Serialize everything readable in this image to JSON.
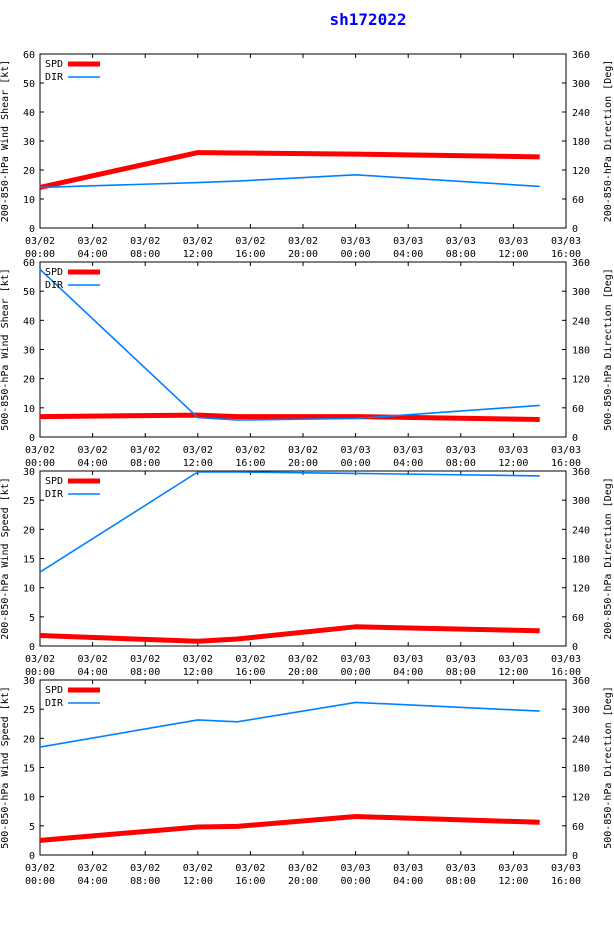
{
  "title": "sh172022",
  "colors": {
    "spd": "#ff0000",
    "dir": "#0080ff",
    "axis": "#000000",
    "title": "#0000ff"
  },
  "x_ticks": [
    [
      "03/02",
      "00:00"
    ],
    [
      "03/02",
      "04:00"
    ],
    [
      "03/02",
      "08:00"
    ],
    [
      "03/02",
      "12:00"
    ],
    [
      "03/02",
      "16:00"
    ],
    [
      "03/02",
      "20:00"
    ],
    [
      "03/03",
      "00:00"
    ],
    [
      "03/03",
      "04:00"
    ],
    [
      "03/03",
      "08:00"
    ],
    [
      "03/03",
      "12:00"
    ],
    [
      "03/03",
      "16:00"
    ]
  ],
  "chart_data": [
    {
      "type": "line",
      "ylabel_left": "200-850-hPa Wind Shear [kt]",
      "ylabel_right": "200-850-hPa Direction [Deg]",
      "ylim_left": [
        0,
        60
      ],
      "yticks_left": [
        0,
        10,
        20,
        30,
        40,
        50,
        60
      ],
      "ylim_right": [
        0,
        360
      ],
      "yticks_right": [
        0,
        60,
        120,
        180,
        240,
        300,
        360
      ],
      "xlim_hours": [
        0,
        40
      ],
      "legend": [
        "SPD",
        "DIR"
      ],
      "series": [
        {
          "name": "SPD",
          "axis": "left",
          "x_hours": [
            0,
            12,
            24,
            38
          ],
          "values": [
            14,
            26,
            25.5,
            24.5
          ]
        },
        {
          "name": "DIR",
          "axis": "right",
          "x_hours": [
            0,
            12,
            15,
            24,
            38
          ],
          "values": [
            84,
            94,
            97,
            110,
            86
          ]
        }
      ]
    },
    {
      "type": "line",
      "ylabel_left": "500-850-hPa Wind Shear [kt]",
      "ylabel_right": "500-850-hPa Direction [Deg]",
      "ylim_left": [
        0,
        60
      ],
      "yticks_left": [
        0,
        10,
        20,
        30,
        40,
        50,
        60
      ],
      "ylim_right": [
        0,
        360
      ],
      "yticks_right": [
        0,
        60,
        120,
        180,
        240,
        300,
        360
      ],
      "xlim_hours": [
        0,
        40
      ],
      "legend": [
        "SPD",
        "DIR"
      ],
      "series": [
        {
          "name": "SPD",
          "axis": "left",
          "x_hours": [
            0,
            12,
            15,
            24,
            38
          ],
          "values": [
            7,
            7.5,
            7,
            7,
            6
          ]
        },
        {
          "name": "DIR",
          "axis": "right",
          "x_hours": [
            0,
            12,
            15,
            24,
            38
          ],
          "values": [
            345,
            40,
            35,
            38,
            65
          ]
        }
      ]
    },
    {
      "type": "line",
      "ylabel_left": "200-850-hPa Wind Speed [kt]",
      "ylabel_right": "200-850-hPa Direction [Deg]",
      "ylim_left": [
        0,
        30
      ],
      "yticks_left": [
        0,
        5,
        10,
        15,
        20,
        25,
        30
      ],
      "ylim_right": [
        0,
        360
      ],
      "yticks_right": [
        0,
        60,
        120,
        180,
        240,
        300,
        360
      ],
      "xlim_hours": [
        0,
        40
      ],
      "legend": [
        "SPD",
        "DIR"
      ],
      "series": [
        {
          "name": "SPD",
          "axis": "left",
          "x_hours": [
            0,
            12,
            15,
            24,
            38
          ],
          "values": [
            1.8,
            0.8,
            1.2,
            3.3,
            2.6
          ]
        },
        {
          "name": "DIR",
          "axis": "right",
          "x_hours": [
            0,
            12,
            15,
            24,
            38
          ],
          "values": [
            152,
            358,
            358,
            355,
            350
          ]
        }
      ]
    },
    {
      "type": "line",
      "ylabel_left": "500-850-hPa Wind Speed [kt]",
      "ylabel_right": "500-850-hPa Direction [Deg]",
      "ylim_left": [
        0,
        30
      ],
      "yticks_left": [
        0,
        5,
        10,
        15,
        20,
        25,
        30
      ],
      "ylim_right": [
        0,
        360
      ],
      "yticks_right": [
        0,
        60,
        120,
        180,
        240,
        300,
        360
      ],
      "xlim_hours": [
        0,
        40
      ],
      "legend": [
        "SPD",
        "DIR"
      ],
      "series": [
        {
          "name": "SPD",
          "axis": "left",
          "x_hours": [
            0,
            12,
            15,
            24,
            38
          ],
          "values": [
            2.5,
            4.8,
            4.9,
            6.6,
            5.6
          ]
        },
        {
          "name": "DIR",
          "axis": "right",
          "x_hours": [
            0,
            12,
            15,
            24,
            38
          ],
          "values": [
            222,
            278,
            274,
            314,
            296
          ]
        }
      ]
    }
  ]
}
